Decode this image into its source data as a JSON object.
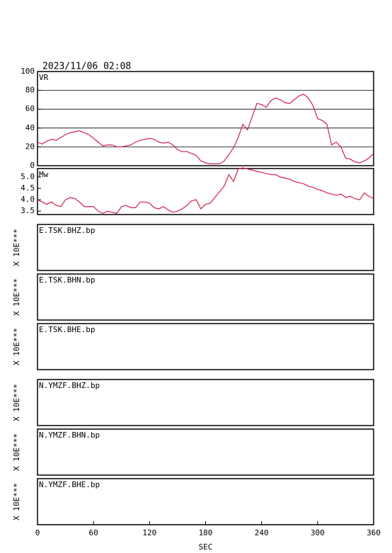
{
  "chart_data": [
    {
      "type": "line",
      "title": "2023/11/06 02:08",
      "label": "VR",
      "color": "#d0204a",
      "grid": true,
      "xlim": [
        0,
        360
      ],
      "ylim": [
        0,
        100
      ],
      "yticks": [
        0,
        20,
        40,
        60,
        80,
        100
      ],
      "x": [
        0,
        5,
        10,
        15,
        20,
        25,
        30,
        35,
        40,
        45,
        50,
        55,
        60,
        65,
        70,
        75,
        80,
        85,
        90,
        95,
        100,
        105,
        110,
        115,
        120,
        125,
        130,
        135,
        140,
        145,
        150,
        155,
        160,
        165,
        170,
        175,
        180,
        185,
        190,
        195,
        200,
        205,
        210,
        215,
        220,
        225,
        230,
        235,
        240,
        245,
        250,
        255,
        260,
        265,
        270,
        275,
        280,
        285,
        290,
        295,
        300,
        305,
        310,
        315,
        320,
        325,
        330,
        335,
        340,
        345,
        350,
        355,
        360
      ],
      "values": [
        25,
        23,
        26,
        28,
        27,
        30,
        33,
        35,
        36,
        37,
        35,
        33,
        29,
        25,
        21,
        22,
        22,
        20,
        20,
        21,
        22,
        25,
        27,
        28,
        29,
        28,
        25,
        24,
        25,
        22,
        17,
        15,
        15,
        13,
        11,
        5,
        3,
        2,
        2,
        2,
        5,
        12,
        19,
        30,
        44,
        38,
        52,
        66,
        65,
        62,
        69,
        72,
        70,
        67,
        66,
        70,
        74,
        76,
        72,
        64,
        50,
        48,
        44,
        22,
        25,
        20,
        8,
        7,
        4,
        3,
        5,
        8,
        13
      ]
    },
    {
      "type": "line",
      "label": "Mw",
      "color": "#d0204a",
      "grid": false,
      "xlim": [
        0,
        360
      ],
      "ylim": [
        3.35,
        5.37
      ],
      "yticks": [
        3.5,
        {
          "value": 4,
          "label": "4.0"
        },
        4.5,
        {
          "value": 5,
          "label": "5.0"
        }
      ],
      "x": [
        0,
        5,
        10,
        15,
        20,
        25,
        30,
        35,
        40,
        45,
        50,
        55,
        60,
        65,
        70,
        75,
        80,
        85,
        90,
        95,
        100,
        105,
        110,
        115,
        120,
        125,
        130,
        135,
        140,
        145,
        150,
        155,
        160,
        165,
        170,
        175,
        180,
        185,
        190,
        195,
        200,
        205,
        210,
        215,
        220,
        225,
        230,
        235,
        240,
        245,
        250,
        255,
        260,
        265,
        270,
        275,
        280,
        285,
        290,
        295,
        300,
        305,
        310,
        315,
        320,
        325,
        330,
        335,
        340,
        345,
        350,
        355,
        360
      ],
      "values": [
        4.0,
        3.9,
        3.8,
        3.9,
        3.75,
        3.7,
        4.0,
        4.1,
        4.05,
        3.9,
        3.7,
        3.7,
        3.7,
        3.5,
        3.4,
        3.5,
        3.45,
        3.4,
        3.7,
        3.75,
        3.65,
        3.65,
        3.9,
        3.9,
        3.85,
        3.65,
        3.6,
        3.7,
        3.55,
        3.45,
        3.5,
        3.6,
        3.75,
        3.95,
        4.0,
        3.6,
        3.8,
        3.85,
        4.1,
        4.35,
        4.6,
        5.1,
        4.8,
        5.35,
        5.4,
        5.35,
        5.3,
        5.25,
        5.2,
        5.15,
        5.1,
        5.1,
        5.0,
        4.95,
        4.9,
        4.8,
        4.75,
        4.7,
        4.6,
        4.55,
        4.45,
        4.4,
        4.3,
        4.25,
        4.2,
        4.25,
        4.1,
        4.15,
        4.05,
        4.0,
        4.3,
        4.15,
        4.05
      ]
    },
    {
      "type": "waveform",
      "label": "E.TSK.BHZ.bp",
      "ylabel": "X 10E***"
    },
    {
      "type": "waveform",
      "label": "E.TSK.BHN.bp",
      "ylabel": "X 10E***"
    },
    {
      "type": "waveform",
      "label": "E.TSK.BHE.bp",
      "ylabel": "X 10E***"
    },
    {
      "type": "waveform",
      "label": "N.YMZF.BHZ.bp",
      "ylabel": "X 10E***"
    },
    {
      "type": "waveform",
      "label": "N.YMZF.BHN.bp",
      "ylabel": "X 10E***"
    },
    {
      "type": "waveform",
      "label": "N.YMZF.BHE.bp",
      "ylabel": "X 10E***",
      "xlim": [
        0,
        360
      ],
      "xticks": [
        0,
        60,
        120,
        180,
        240,
        300,
        360
      ],
      "xlabel": "SEC"
    }
  ]
}
